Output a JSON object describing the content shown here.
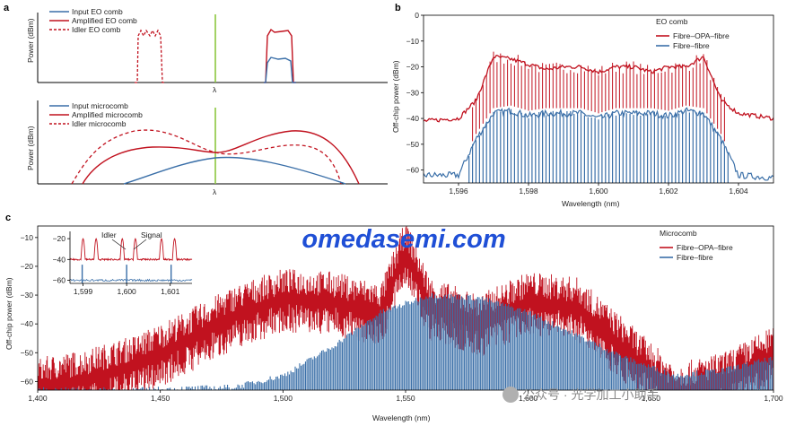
{
  "colors": {
    "red": "#c1121f",
    "blue": "#3a6fa8",
    "green": "#8cc63f",
    "watermark": "#1f4fd6"
  },
  "watermark": "omedasemi.com",
  "credit": "公众号 · 光学加工小助手",
  "chart_data": [
    {
      "panel": "a",
      "type": "line",
      "ylabel": "Power (dBm)",
      "xlabel": "λ",
      "series": [
        {
          "name": "Input EO comb",
          "style": "solid",
          "color": "#3a6fa8"
        },
        {
          "name": "Amplified EO comb",
          "style": "solid",
          "color": "#c1121f"
        },
        {
          "name": "Idler EO comb",
          "style": "dashed",
          "color": "#c1121f"
        }
      ]
    },
    {
      "panel": "a (lower)",
      "type": "line",
      "ylabel": "Power (dBm)",
      "xlabel": "λ",
      "series": [
        {
          "name": "Input microcomb",
          "style": "solid",
          "color": "#3a6fa8"
        },
        {
          "name": "Amplified microcomb",
          "style": "solid",
          "color": "#c1121f"
        },
        {
          "name": "Idler microcomb",
          "style": "dashed",
          "color": "#c1121f"
        }
      ]
    },
    {
      "panel": "b",
      "type": "line",
      "title": "EO comb",
      "xlabel": "Wavelength (nm)",
      "ylabel": "Off-chip power (dBm)",
      "xlim": [
        1595,
        1605
      ],
      "ylim": [
        -65,
        0
      ],
      "xticks": [
        1596,
        1598,
        1600,
        1602,
        1604
      ],
      "xtick_labels": [
        "1,596",
        "1,598",
        "1,600",
        "1,602",
        "1,604"
      ],
      "yticks": [
        0,
        -10,
        -20,
        -30,
        -40,
        -50,
        -60
      ],
      "ytick_labels": [
        "0",
        "−10",
        "−20",
        "−30",
        "−40",
        "−50",
        "−60"
      ],
      "legend_placement": "top-right",
      "series": [
        {
          "name": "Fibre–OPA–fibre",
          "color": "#c1121f",
          "x": [
            1595.0,
            1596.0,
            1596.5,
            1597.0,
            1597.5,
            1598.0,
            1598.5,
            1599.0,
            1599.5,
            1600.0,
            1600.5,
            1601.0,
            1601.5,
            1602.0,
            1602.5,
            1603.0,
            1603.5,
            1604.0,
            1605.0
          ],
          "y": [
            -41,
            -40,
            -33,
            -16,
            -17,
            -19,
            -21,
            -20,
            -20,
            -22,
            -20,
            -20,
            -22,
            -20,
            -20,
            -16,
            -33,
            -38,
            -40
          ]
        },
        {
          "name": "Fibre–fibre",
          "color": "#3a6fa8",
          "x": [
            1595.0,
            1596.0,
            1596.5,
            1597.0,
            1597.5,
            1598.0,
            1598.5,
            1599.0,
            1599.5,
            1600.0,
            1600.5,
            1601.0,
            1601.5,
            1602.0,
            1602.5,
            1603.0,
            1603.5,
            1604.0,
            1605.0
          ],
          "y": [
            -62,
            -62,
            -48,
            -38,
            -37,
            -39,
            -38,
            -38,
            -38,
            -40,
            -38,
            -38,
            -38,
            -39,
            -37,
            -38,
            -48,
            -62,
            -63
          ]
        }
      ]
    },
    {
      "panel": "c",
      "type": "line",
      "title": "Microcomb",
      "xlabel": "Wavelength (nm)",
      "ylabel": "Off-chip power (dBm)",
      "xlim": [
        1400,
        1700
      ],
      "ylim": [
        -63,
        -6
      ],
      "xticks": [
        1400,
        1450,
        1500,
        1550,
        1600,
        1650,
        1700
      ],
      "xtick_labels": [
        "1,400",
        "1,450",
        "1,500",
        "1,550",
        "1,600",
        "1,650",
        "1,700"
      ],
      "yticks": [
        -10,
        -20,
        -30,
        -40,
        -50,
        -60
      ],
      "ytick_labels": [
        "−10",
        "−20",
        "−30",
        "−40",
        "−50",
        "−60"
      ],
      "legend_placement": "top-right",
      "series": [
        {
          "name": "Fibre–OPA–fibre",
          "color": "#c1121f",
          "x": [
            1400,
            1420,
            1440,
            1460,
            1480,
            1500,
            1520,
            1540,
            1550,
            1560,
            1580,
            1600,
            1620,
            1640,
            1660,
            1680,
            1700
          ],
          "y": [
            -58,
            -55,
            -50,
            -42,
            -33,
            -27,
            -28,
            -32,
            -10,
            -30,
            -36,
            -28,
            -30,
            -45,
            -60,
            -56,
            -47
          ]
        },
        {
          "name": "Fibre–fibre",
          "color": "#3a6fa8",
          "x": [
            1400,
            1440,
            1480,
            1500,
            1520,
            1540,
            1560,
            1580,
            1600,
            1620,
            1640,
            1660,
            1680,
            1700
          ],
          "y": [
            -63,
            -63,
            -62,
            -58,
            -48,
            -36,
            -30,
            -31,
            -36,
            -44,
            -52,
            -58,
            -56,
            -52
          ]
        }
      ]
    },
    {
      "panel": "c (inset)",
      "type": "line",
      "xlim": [
        1598.7,
        1601.5
      ],
      "ylim": [
        -63,
        -13
      ],
      "xticks": [
        1599,
        1600,
        1601
      ],
      "xtick_labels": [
        "1,599",
        "1,600",
        "1,601"
      ],
      "yticks": [
        -20,
        -40,
        -60
      ],
      "ytick_labels": [
        "−20",
        "−40",
        "−60"
      ],
      "annotations": [
        "Idler",
        "Signal"
      ]
    }
  ]
}
